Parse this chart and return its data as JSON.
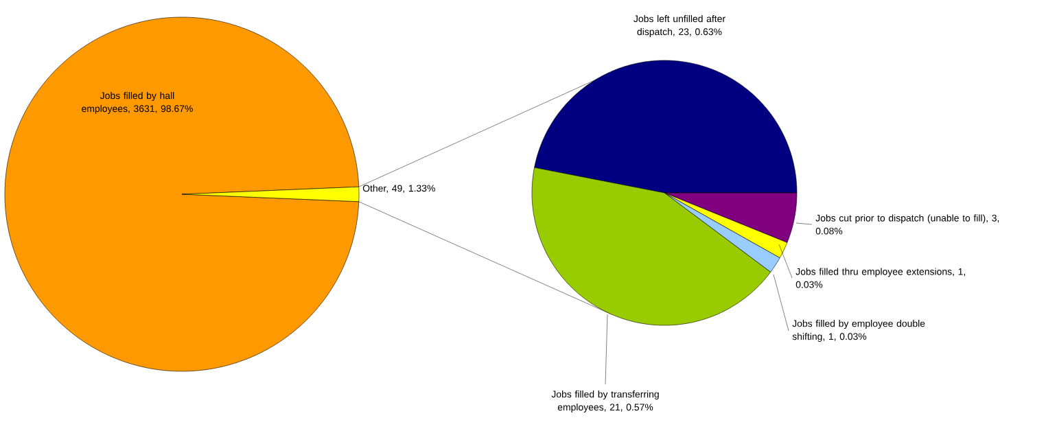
{
  "chart_data": [
    {
      "type": "pie",
      "categories": [
        "Jobs filled by hall employees, 3631, 98.67%",
        "Other, 49, 1.33%"
      ],
      "values": [
        3631,
        49
      ],
      "colors": [
        "#ff9900",
        "#ffff00"
      ]
    },
    {
      "type": "pie",
      "categories": [
        "Jobs left unfilled after dispatch, 23, 0.63%",
        "Jobs cut prior to dispatch (unable to fill), 3, 0.08%",
        "Jobs filled thru employee extensions, 1, 0.03%",
        "Jobs filled by employee double shifting, 1, 0.03%",
        "Jobs filled by transferring employees, 21, 0.57%"
      ],
      "values": [
        23,
        3,
        1,
        1,
        21
      ],
      "colors": [
        "#000080",
        "#800080",
        "#ffff00",
        "#99ccff",
        "#99cc00"
      ]
    }
  ]
}
